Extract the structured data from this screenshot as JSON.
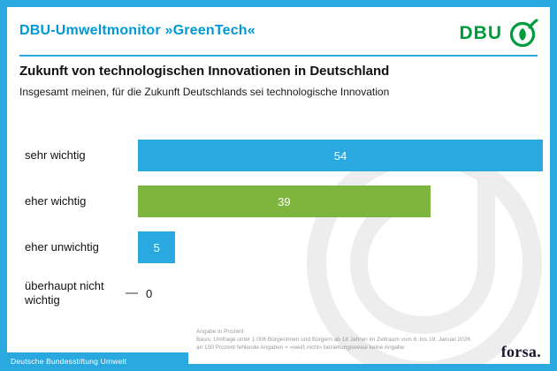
{
  "colors": {
    "accent_cyan": "#29a9e0",
    "header_blue": "#0098d6",
    "bar_green": "#7db53e",
    "dbu_green": "#009b3c",
    "watermark_gray": "#ededed",
    "forsa_dark": "#17172f"
  },
  "header": {
    "title": "DBU-Umweltmonitor »GreenTech«",
    "logo_text": "DBU"
  },
  "chart": {
    "title": "Zukunft von technologischen Innovationen in Deutschland",
    "subtitle": "Insgesamt meinen, für die Zukunft Deutschlands sei technologische Innovation"
  },
  "chart_data": {
    "type": "bar",
    "orientation": "horizontal",
    "title": "Zukunft von technologischen Innovationen in Deutschland",
    "subtitle": "Insgesamt meinen, für die Zukunft Deutschlands sei technologische Innovation",
    "unit": "Prozent",
    "categories": [
      "sehr wichtig",
      "eher wichtig",
      "eher unwichtig",
      "überhaupt nicht wichtig"
    ],
    "values": [
      54,
      39,
      5,
      0
    ],
    "bar_colors": [
      "#29a9e0",
      "#7db53e",
      "#29a9e0",
      "none"
    ],
    "axis_max": 54,
    "value_label_position": "inside-center",
    "grid": false,
    "legend": false
  },
  "footnotes": [
    "Angabe in Prozent",
    "Basis: Umfrage unter 1.006 Bürgerinnen und Bürgern ab 18 Jahren im Zeitraum vom 6. bis 19. Januar 2026",
    "an 100 Prozent fehlende Angaben = »weiß nicht« beziehungsweise keine Angabe"
  ],
  "footer": {
    "organization": "Deutsche Bundesstiftung Umwelt",
    "agency": "forsa."
  }
}
